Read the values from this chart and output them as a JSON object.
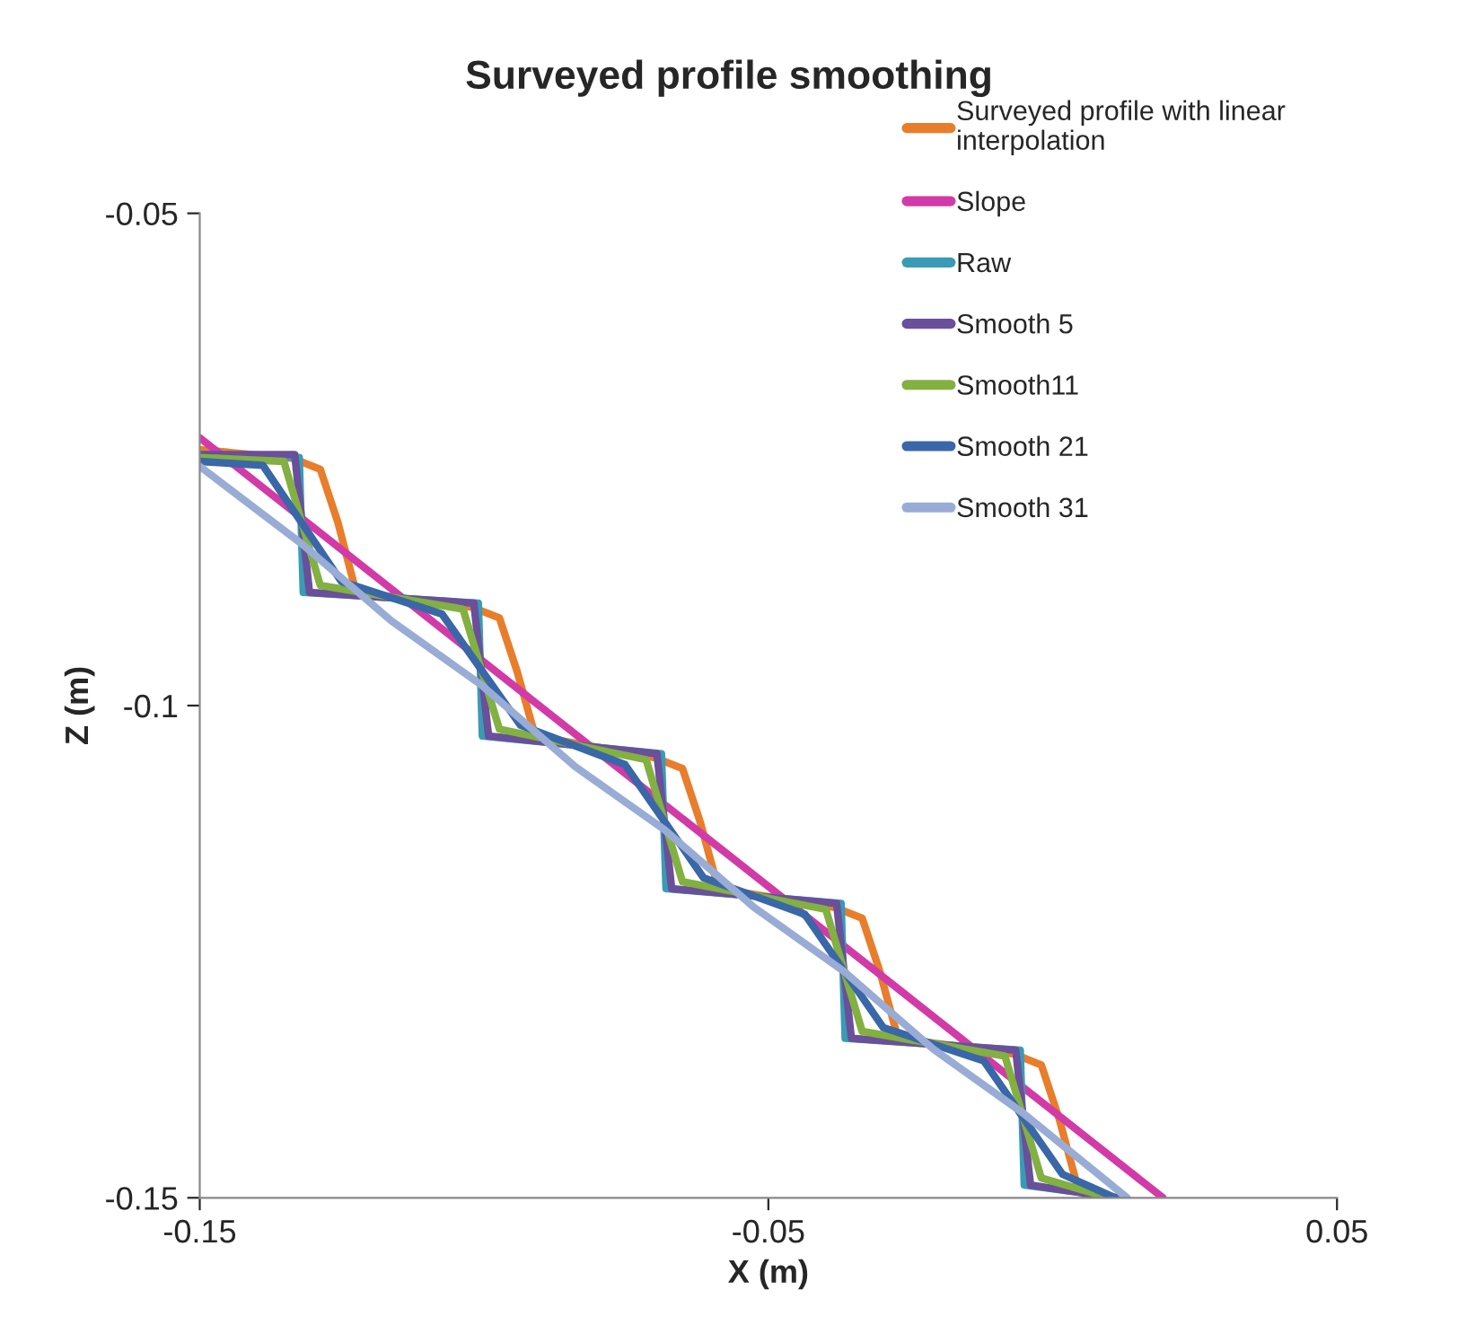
{
  "chart_data": {
    "type": "line",
    "title": "Surveyed profile smoothing",
    "xlabel": "X (m)",
    "ylabel": "Z (m)",
    "xlim": [
      -0.15,
      0.05
    ],
    "xticks": [
      -0.15,
      -0.05,
      0.05
    ],
    "ylim": [
      -0.15,
      -0.05
    ],
    "yticks": [
      -0.05,
      -0.1,
      -0.15
    ],
    "grid": false,
    "legend": "top right",
    "marker": "none",
    "line_style": "solid",
    "series": [
      {
        "name": "Surveyed profile with linear interpolation",
        "color": "#e87d2b",
        "x": [
          -0.15,
          -0.1336,
          -0.1288,
          -0.1257,
          -0.1225,
          -0.1021,
          -0.0973,
          -0.0942,
          -0.091,
          -0.0699,
          -0.0651,
          -0.062,
          -0.0588,
          -0.0383,
          -0.0335,
          -0.0304,
          -0.0272,
          -0.0068,
          -0.002,
          0.0011,
          0.0043,
          0.006
        ],
        "values": [
          -0.074,
          -0.0749,
          -0.076,
          -0.0814,
          -0.0885,
          -0.09,
          -0.0911,
          -0.0965,
          -0.1031,
          -0.1053,
          -0.1064,
          -0.1118,
          -0.1186,
          -0.1205,
          -0.1216,
          -0.127,
          -0.1338,
          -0.1354,
          -0.1365,
          -0.1419,
          -0.1487,
          -0.15
        ]
      },
      {
        "name": "Slope",
        "color": "#d23aa8",
        "x": [
          -0.15,
          0.0194
        ],
        "values": [
          -0.0728,
          -0.15
        ]
      },
      {
        "name": "Raw",
        "color": "#3a9bb5",
        "x": [
          -0.15,
          -0.1325,
          -0.1318,
          -0.101,
          -0.1003,
          -0.0688,
          -0.068,
          -0.0372,
          -0.0365,
          -0.0057,
          -0.005,
          0.012
        ],
        "values": [
          -0.0745,
          -0.0748,
          -0.0885,
          -0.0896,
          -0.1031,
          -0.1049,
          -0.1186,
          -0.1201,
          -0.1338,
          -0.135,
          -0.1487,
          -0.15
        ]
      },
      {
        "name": "Smooth 5",
        "color": "#6a4f9a",
        "x": [
          -0.15,
          -0.1333,
          -0.1307,
          -0.1018,
          -0.0992,
          -0.0696,
          -0.067,
          -0.038,
          -0.0354,
          -0.0065,
          -0.0039,
          0.011
        ],
        "values": [
          -0.0745,
          -0.0745,
          -0.0885,
          -0.0896,
          -0.1031,
          -0.1049,
          -0.1186,
          -0.1201,
          -0.1338,
          -0.135,
          -0.1487,
          -0.15
        ]
      },
      {
        "name": "Smooth11",
        "color": "#82b041",
        "x": [
          -0.15,
          -0.1352,
          -0.1288,
          -0.1037,
          -0.0973,
          -0.0715,
          -0.0651,
          -0.0399,
          -0.0335,
          -0.0084,
          -0.002,
          0.01
        ],
        "values": [
          -0.0748,
          -0.0752,
          -0.0878,
          -0.0902,
          -0.1024,
          -0.1055,
          -0.1179,
          -0.1207,
          -0.1331,
          -0.1356,
          -0.148,
          -0.15
        ]
      },
      {
        "name": "Smooth 21",
        "color": "#3a67a8",
        "x": [
          -0.15,
          -0.1389,
          -0.1251,
          -0.1074,
          -0.0936,
          -0.0752,
          -0.0614,
          -0.0436,
          -0.0298,
          -0.0121,
          0.0017,
          0.011
        ],
        "values": [
          -0.0752,
          -0.0756,
          -0.0874,
          -0.0907,
          -0.102,
          -0.106,
          -0.1175,
          -0.1212,
          -0.1327,
          -0.1361,
          -0.1476,
          -0.15
        ]
      },
      {
        "name": "Smooth 31",
        "color": "#99acd6",
        "x": [
          -0.15,
          -0.132,
          -0.1163,
          -0.1005,
          -0.084,
          -0.0683,
          -0.0525,
          -0.0367,
          -0.021,
          -0.0052,
          0.0131
        ],
        "values": [
          -0.0757,
          -0.0836,
          -0.0914,
          -0.0979,
          -0.1062,
          -0.1126,
          -0.1205,
          -0.127,
          -0.1349,
          -0.1414,
          -0.15
        ]
      }
    ]
  }
}
